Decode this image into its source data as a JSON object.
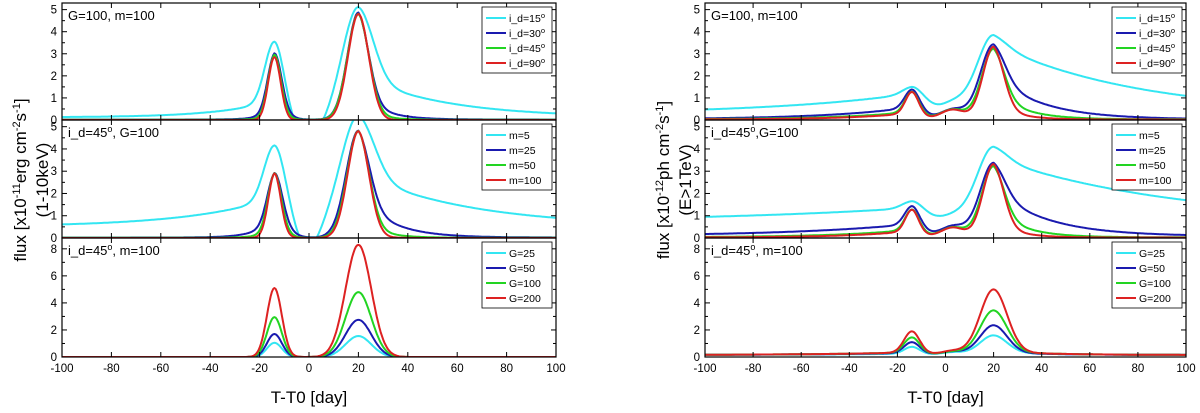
{
  "figure": {
    "colors": {
      "cyan": "#33e6f2",
      "blue": "#1a1aaf",
      "green": "#22d422",
      "red": "#dd2222"
    }
  },
  "chart_data": [
    {
      "type": "line",
      "id": "left",
      "xlabel": "T-T0 [day]",
      "ylabel": "flux [x10-11 erg cm-2 s-1]",
      "ylabel2": "(1-10keV)",
      "ylabel_parts": {
        "prefix": "flux [x10",
        "exp1": "-11",
        "unit": "erg cm",
        "exp2": "-2",
        "s": "s",
        "exp3": "-1",
        "suffix": "]"
      },
      "xlim": [
        -100,
        100
      ],
      "xticks": [
        -100,
        -80,
        -60,
        -40,
        -20,
        0,
        20,
        40,
        60,
        80,
        100
      ],
      "panels": [
        {
          "annotation": "G=100, m=100",
          "ylim": [
            0,
            5.3
          ],
          "yticks": [
            0,
            1,
            2,
            3,
            4,
            5
          ],
          "series": [
            {
              "name": "i_d=15°",
              "color": "#33e6f2",
              "params": {
                "base": 0.12,
                "wingL": 0.78,
                "tauL": 22,
                "pkL": 2.75,
                "wL": 3.8,
                "wingR": 1.9,
                "tauR": 34,
                "pkR": 3.1,
                "wR": 6.0,
                "dip": 1.05,
                "dipW": 6
              }
            },
            {
              "name": "i_d=30°",
              "color": "#1a1aaf",
              "params": {
                "base": 0.02,
                "wingL": 0.55,
                "tauL": 5,
                "pkL": 2.45,
                "wL": 2.8,
                "wingR": 1.3,
                "tauR": 9,
                "pkR": 3.55,
                "wR": 4.2
              }
            },
            {
              "name": "i_d=45°",
              "color": "#22d422",
              "params": {
                "base": 0.01,
                "wingL": 0.3,
                "tauL": 4,
                "pkL": 2.65,
                "wL": 2.6,
                "wingR": 0.6,
                "tauR": 7,
                "pkR": 4.2,
                "wR": 4.3
              }
            },
            {
              "name": "i_d=90°",
              "color": "#dd2222",
              "params": {
                "base": 0.0,
                "wingL": 0.0,
                "tauL": 3,
                "pkL": 2.85,
                "wL": 2.5,
                "wingR": 0.0,
                "tauR": 5,
                "pkR": 4.8,
                "wR": 4.2
              }
            }
          ]
        },
        {
          "annotation": "i_d=45°, G=100",
          "ylim": [
            0,
            5.3
          ],
          "yticks": [
            0,
            1,
            2,
            3,
            4,
            5
          ],
          "series": [
            {
              "name": "m=5",
              "color": "#33e6f2",
              "params": {
                "base": 0.5,
                "wingL": 1.3,
                "tauL": 35,
                "pkL": 2.4,
                "wL": 4.2,
                "wingR": 2.4,
                "tauR": 45,
                "pkR": 2.6,
                "wR": 6.5,
                "dip": 1.2,
                "dipW": 5
              }
            },
            {
              "name": "m=25",
              "color": "#1a1aaf",
              "params": {
                "base": 0.02,
                "wingL": 0.9,
                "tauL": 7,
                "pkL": 2.0,
                "wL": 3.0,
                "wingR": 1.9,
                "tauR": 13,
                "pkR": 2.9,
                "wR": 4.6
              }
            },
            {
              "name": "m=50",
              "color": "#22d422",
              "params": {
                "base": 0.01,
                "wingL": 0.45,
                "tauL": 5,
                "pkL": 2.45,
                "wL": 2.7,
                "wingR": 0.9,
                "tauR": 8,
                "pkR": 3.9,
                "wR": 4.4
              }
            },
            {
              "name": "m=100",
              "color": "#dd2222",
              "params": {
                "base": 0.0,
                "wingL": 0.2,
                "tauL": 3,
                "pkL": 2.7,
                "wL": 2.5,
                "wingR": 0.3,
                "tauR": 5,
                "pkR": 4.5,
                "wR": 4.3
              }
            }
          ]
        },
        {
          "annotation": "i_d=45°, m=100",
          "ylim": [
            0,
            8.8
          ],
          "yticks": [
            0,
            2,
            4,
            6,
            8
          ],
          "series": [
            {
              "name": "G=25",
              "color": "#33e6f2",
              "params": {
                "base": 0.0,
                "wingL": 0.0,
                "tauL": 3,
                "pkL": 1.05,
                "wL": 3.0,
                "wingR": 0.0,
                "tauR": 5,
                "pkR": 1.55,
                "wR": 5.2
              }
            },
            {
              "name": "G=50",
              "color": "#1a1aaf",
              "params": {
                "base": 0.0,
                "wingL": 0.0,
                "tauL": 3,
                "pkL": 1.7,
                "wL": 3.0,
                "wingR": 0.0,
                "tauR": 5,
                "pkR": 2.75,
                "wR": 5.2
              }
            },
            {
              "name": "G=100",
              "color": "#22d422",
              "params": {
                "base": 0.0,
                "wingL": 0.0,
                "tauL": 3,
                "pkL": 2.95,
                "wL": 3.0,
                "wingR": 0.0,
                "tauR": 5,
                "pkR": 4.8,
                "wR": 5.2
              }
            },
            {
              "name": "G=200",
              "color": "#dd2222",
              "params": {
                "base": 0.0,
                "wingL": 0.0,
                "tauL": 3,
                "pkL": 5.1,
                "wL": 3.0,
                "wingR": 0.0,
                "tauR": 5,
                "pkR": 8.3,
                "wR": 5.2
              }
            }
          ]
        }
      ]
    },
    {
      "type": "line",
      "id": "right",
      "xlabel": "T-T0 [day]",
      "ylabel": "flux [x10-12 ph cm-2 s-1]",
      "ylabel2": "(E>1TeV)",
      "ylabel_parts": {
        "prefix": "flux [x10",
        "exp1": "-12",
        "unit": "ph cm",
        "exp2": "-2",
        "s": "s",
        "exp3": "-1",
        "suffix": "]"
      },
      "xlim": [
        -100,
        100
      ],
      "xticks": [
        -100,
        -80,
        -60,
        -40,
        -20,
        0,
        20,
        40,
        60,
        80,
        100
      ],
      "panels": [
        {
          "annotation": "G=100, m=100",
          "ylim": [
            0,
            5.3
          ],
          "yticks": [
            0,
            1,
            2,
            3,
            4,
            5
          ],
          "series": [
            {
              "name": "i_d=15°",
              "color": "#33e6f2",
              "params": {
                "base": 0.25,
                "wingL": 0.95,
                "tauL": 60,
                "pkL": 0.3,
                "wL": 4.0,
                "wingR": 3.2,
                "tauR": 60,
                "pkR": 0.4,
                "wR": 6.0,
                "mid": 0.45,
                "midW": 5
              }
            },
            {
              "name": "i_d=30°",
              "color": "#1a1aaf",
              "params": {
                "base": 0.03,
                "wingL": 0.55,
                "tauL": 35,
                "pkL": 0.8,
                "wL": 3.0,
                "wingR": 2.0,
                "tauR": 20,
                "pkR": 1.4,
                "wR": 5.0,
                "mid": 0.45,
                "midW": 5
              }
            },
            {
              "name": "i_d=45°",
              "color": "#22d422",
              "params": {
                "base": 0.03,
                "wingL": 0.35,
                "tauL": 28,
                "pkL": 0.9,
                "wL": 2.8,
                "wingR": 1.3,
                "tauR": 12,
                "pkR": 1.9,
                "wR": 4.6,
                "mid": 0.45,
                "midW": 5
              }
            },
            {
              "name": "i_d=90°",
              "color": "#dd2222",
              "params": {
                "base": 0.02,
                "wingL": 0.3,
                "tauL": 25,
                "pkL": 0.95,
                "wL": 2.7,
                "wingR": 0.8,
                "tauR": 9,
                "pkR": 2.5,
                "wR": 4.3,
                "mid": 0.45,
                "midW": 5
              }
            }
          ]
        },
        {
          "annotation": "i_d=45°,G=100",
          "ylim": [
            0,
            5.3
          ],
          "yticks": [
            0,
            1,
            2,
            3,
            4,
            5
          ],
          "series": [
            {
              "name": "m=5",
              "color": "#33e6f2",
              "params": {
                "base": 0.7,
                "wingL": 0.65,
                "tauL": 90,
                "pkL": 0.3,
                "wL": 4.0,
                "wingR": 2.9,
                "tauR": 75,
                "pkR": 0.5,
                "wR": 6.0,
                "mid": 0.25,
                "midW": 5
              }
            },
            {
              "name": "m=25",
              "color": "#1a1aaf",
              "params": {
                "base": 0.08,
                "wingL": 0.55,
                "tauL": 50,
                "pkL": 0.8,
                "wL": 3.0,
                "wingR": 2.1,
                "tauR": 22,
                "pkR": 1.2,
                "wR": 5.0,
                "mid": 0.45,
                "midW": 5
              }
            },
            {
              "name": "m=50",
              "color": "#22d422",
              "params": {
                "base": 0.03,
                "wingL": 0.35,
                "tauL": 30,
                "pkL": 0.9,
                "wL": 2.8,
                "wingR": 1.3,
                "tauR": 12,
                "pkR": 1.9,
                "wR": 4.6,
                "mid": 0.45,
                "midW": 5
              }
            },
            {
              "name": "m=100",
              "color": "#dd2222",
              "params": {
                "base": 0.02,
                "wingL": 0.3,
                "tauL": 25,
                "pkL": 0.95,
                "wL": 2.7,
                "wingR": 0.8,
                "tauR": 9,
                "pkR": 2.5,
                "wR": 4.3,
                "mid": 0.45,
                "midW": 5
              }
            }
          ]
        },
        {
          "annotation": "i_d=45°, m=100",
          "ylim": [
            0,
            8.8
          ],
          "yticks": [
            0,
            2,
            4,
            6,
            8
          ],
          "series": [
            {
              "name": "G=25",
              "color": "#33e6f2",
              "params": {
                "base": 0.15,
                "wingL": 0.1,
                "tauL": 40,
                "pkL": 0.5,
                "wL": 3.2,
                "wingR": 0.2,
                "tauR": 25,
                "pkR": 1.25,
                "wR": 5.6,
                "mid": 0.2,
                "midW": 5
              }
            },
            {
              "name": "G=50",
              "color": "#1a1aaf",
              "params": {
                "base": 0.15,
                "wingL": 0.15,
                "tauL": 40,
                "pkL": 0.8,
                "wL": 3.2,
                "wingR": 0.2,
                "tauR": 25,
                "pkR": 2.0,
                "wR": 5.6,
                "mid": 0.25,
                "midW": 5
              }
            },
            {
              "name": "G=100",
              "color": "#22d422",
              "params": {
                "base": 0.15,
                "wingL": 0.2,
                "tauL": 35,
                "pkL": 1.1,
                "wL": 3.2,
                "wingR": 0.3,
                "tauR": 22,
                "pkR": 3.0,
                "wR": 5.6,
                "mid": 0.25,
                "midW": 5
              }
            },
            {
              "name": "G=200",
              "color": "#dd2222",
              "params": {
                "base": 0.15,
                "wingL": 0.2,
                "tauL": 35,
                "pkL": 1.55,
                "wL": 3.2,
                "wingR": 0.3,
                "tauR": 22,
                "pkR": 4.55,
                "wR": 5.6,
                "mid": 0.3,
                "midW": 5
              }
            }
          ]
        }
      ]
    }
  ]
}
